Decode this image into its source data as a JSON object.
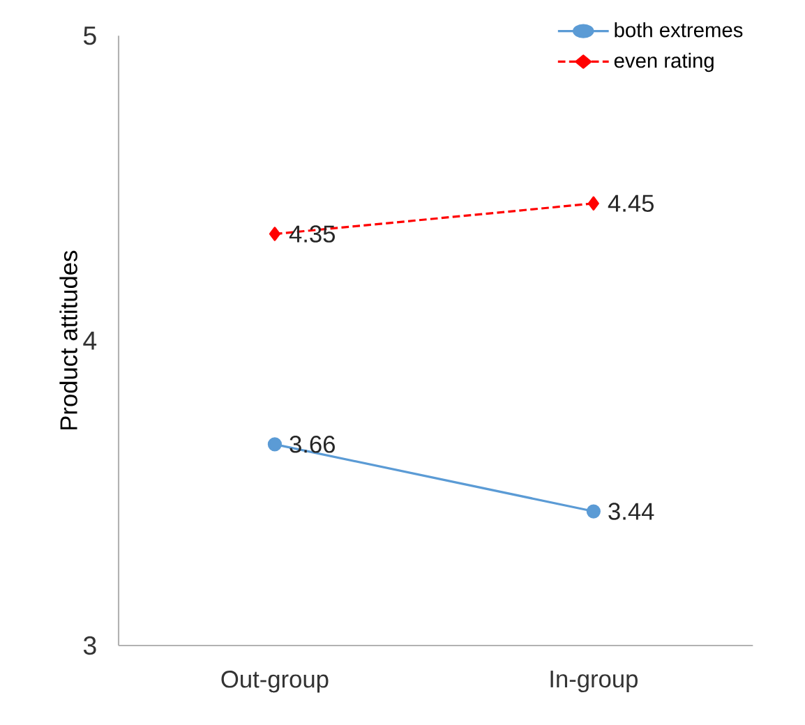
{
  "chart_data": {
    "type": "line",
    "ylabel": "Product attitudes",
    "categories": [
      "Out-group",
      "In-group"
    ],
    "series": [
      {
        "name": "both extremes",
        "color": "#5b9bd5",
        "marker": "circle",
        "line_style": "solid",
        "values": [
          3.66,
          3.44
        ]
      },
      {
        "name": "even rating",
        "color": "#ff0000",
        "marker": "diamond",
        "line_style": "dashed",
        "values": [
          4.35,
          4.45
        ]
      }
    ],
    "ylim": [
      3,
      5
    ],
    "yticks": [
      3,
      4,
      5
    ],
    "data_labels": true,
    "legend": "top right",
    "grid": false
  }
}
